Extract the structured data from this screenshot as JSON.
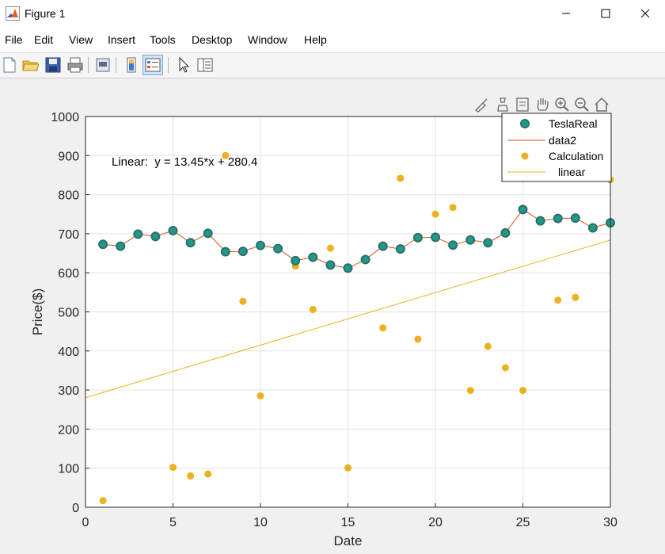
{
  "window": {
    "title": "Figure 1",
    "minimize": "—",
    "maximize": "☐",
    "close": "✕"
  },
  "menu": [
    "File",
    "Edit",
    "View",
    "Insert",
    "Tools",
    "Desktop",
    "Window",
    "Help"
  ],
  "toolbar": {
    "icons": [
      "new-figure-icon",
      "open-file-icon",
      "save-icon",
      "print-icon",
      "print-preview-icon",
      "colorbar-icon",
      "legend-icon",
      "pointer-icon",
      "property-inspector-icon"
    ]
  },
  "axes_toolbar": {
    "icons": [
      "brush-icon",
      "data-tips-icon",
      "restore-view-icon",
      "pan-icon",
      "zoom-in-icon",
      "zoom-out-icon",
      "home-icon"
    ]
  },
  "colors": {
    "tesla_face": "#1f9a8a",
    "tesla_edge": "#2e6e6a",
    "data2_line": "#d95319",
    "calc": "#edb120",
    "linear": "#edb120"
  },
  "chart_data": {
    "type": "scatter",
    "xlabel": "Date",
    "ylabel": "Price($)",
    "xlim": [
      0,
      30
    ],
    "ylim": [
      0,
      1000
    ],
    "xticks": [
      0,
      5,
      10,
      15,
      20,
      25,
      30
    ],
    "yticks": [
      0,
      100,
      200,
      300,
      400,
      500,
      600,
      700,
      800,
      900,
      1000
    ],
    "grid": true,
    "legend_position": "top-right",
    "annotation": "Linear:  y = 13.45*x + 280.4",
    "series": [
      {
        "name": "TeslaReal",
        "kind": "markers",
        "x": [
          1,
          2,
          3,
          4,
          5,
          6,
          7,
          8,
          9,
          10,
          11,
          12,
          13,
          14,
          15,
          16,
          17,
          18,
          19,
          20,
          21,
          22,
          23,
          24,
          25,
          26,
          27,
          28,
          29,
          30
        ],
        "y": [
          673,
          668,
          699,
          693,
          708,
          677,
          701,
          654,
          655,
          670,
          662,
          631,
          640,
          620,
          612,
          634,
          668,
          661,
          690,
          691,
          671,
          684,
          677,
          702,
          762,
          733,
          739,
          740,
          715,
          728
        ]
      },
      {
        "name": "data2",
        "kind": "line",
        "x": [
          1,
          2,
          3,
          4,
          5,
          6,
          7,
          8,
          9,
          10,
          11,
          12,
          13,
          14,
          15,
          16,
          17,
          18,
          19,
          20,
          21,
          22,
          23,
          24,
          25,
          26,
          27,
          28,
          29,
          30
        ],
        "y": [
          673,
          668,
          699,
          693,
          708,
          677,
          701,
          654,
          655,
          670,
          662,
          631,
          640,
          620,
          612,
          634,
          668,
          661,
          690,
          691,
          671,
          684,
          677,
          702,
          762,
          733,
          739,
          740,
          715,
          728
        ]
      },
      {
        "name": "Calculation",
        "kind": "markers",
        "x": [
          1,
          4,
          5,
          6,
          7,
          8,
          9,
          10,
          12,
          13,
          14,
          15,
          16,
          17,
          18,
          19,
          20,
          21,
          22,
          23,
          24,
          25,
          27,
          28,
          30
        ],
        "y": [
          17,
          697,
          102,
          80,
          85,
          900,
          527,
          285,
          617,
          506,
          663,
          101,
          636,
          459,
          842,
          430,
          750,
          767,
          299,
          412,
          357,
          299,
          530,
          537,
          838
        ]
      },
      {
        "name": "linear",
        "kind": "fitline",
        "slope": 13.45,
        "intercept": 280.4
      }
    ]
  }
}
